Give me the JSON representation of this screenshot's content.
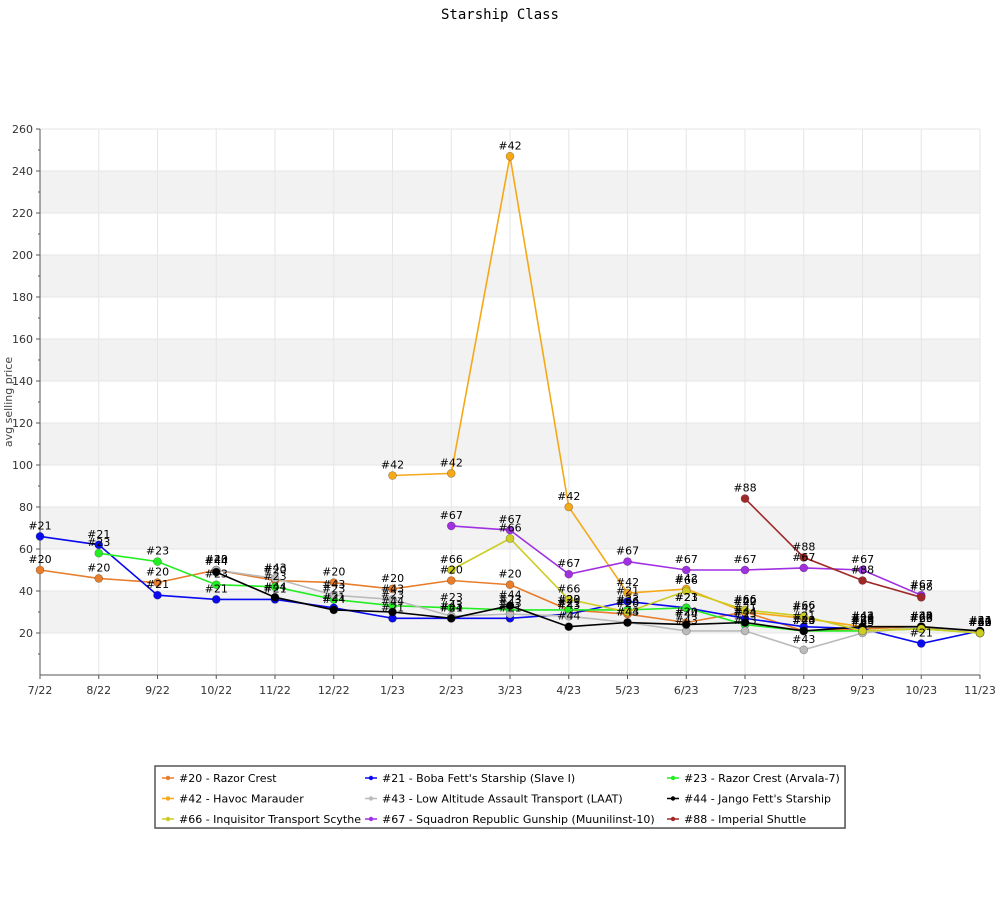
{
  "chart_data": {
    "type": "line",
    "title": "Starship Class",
    "xlabel": "",
    "ylabel": "avg selling price",
    "ylim": [
      0,
      260
    ],
    "yticks": [
      20,
      40,
      60,
      80,
      100,
      120,
      140,
      160,
      180,
      200,
      220,
      240,
      260
    ],
    "categories": [
      "7/22",
      "8/22",
      "9/22",
      "10/22",
      "11/22",
      "12/22",
      "1/23",
      "2/23",
      "3/23",
      "4/23",
      "5/23",
      "6/23",
      "7/23",
      "8/23",
      "9/23",
      "10/23",
      "11/23"
    ],
    "grid": true,
    "legend_position": "bottom",
    "series": [
      {
        "name": "#20 - Razor Crest",
        "label": "#20",
        "color": "#e87d2b",
        "values": [
          50,
          46,
          44,
          50,
          45,
          44,
          41,
          45,
          43,
          31,
          29,
          25,
          30,
          21,
          22,
          23,
          20
        ]
      },
      {
        "name": "#21 - Boba Fett's Starship (Slave I)",
        "label": "#21",
        "color": "#0a0af0",
        "values": [
          66,
          62,
          38,
          36,
          36,
          32,
          27,
          27,
          27,
          29,
          35,
          32,
          27,
          23,
          22,
          15,
          21
        ]
      },
      {
        "name": "#23 - Razor Crest (Arvala-7)",
        "label": "#23",
        "color": "#22ee22",
        "values": [
          null,
          58,
          54,
          43,
          42,
          36,
          33,
          32,
          31,
          31,
          31,
          32,
          24,
          21,
          21,
          22,
          20
        ]
      },
      {
        "name": "#42 - Havoc Marauder",
        "label": "#42",
        "color": "#f5a818",
        "values": [
          null,
          null,
          null,
          null,
          null,
          null,
          95,
          96,
          247,
          80,
          39,
          41,
          30,
          27,
          23,
          23,
          20
        ]
      },
      {
        "name": "#43 - Low Altitude Assault Transport (LAAT)",
        "label": "#43",
        "color": "#bbbbbb",
        "values": [
          null,
          null,
          null,
          50,
          46,
          38,
          36,
          28,
          29,
          28,
          25,
          21,
          21,
          12,
          20,
          23,
          20
        ]
      },
      {
        "name": "#44 - Jango Fett's Starship",
        "label": "#44",
        "color": "#000000",
        "values": [
          null,
          null,
          null,
          49,
          37,
          31,
          30,
          27,
          33,
          23,
          25,
          24,
          25,
          21,
          23,
          23,
          21
        ]
      },
      {
        "name": "#66 - Inquisitor Transport Scythe",
        "label": "#66",
        "color": "#cccc22",
        "values": [
          null,
          null,
          null,
          null,
          null,
          null,
          null,
          50,
          65,
          36,
          30,
          40,
          31,
          28,
          21,
          22,
          20
        ]
      },
      {
        "name": "#67 - Squadron Republic Gunship (Muunilinst-10)",
        "label": "#67",
        "color": "#a030e0",
        "values": [
          null,
          null,
          null,
          null,
          null,
          null,
          null,
          71,
          69,
          48,
          54,
          50,
          50,
          51,
          50,
          38,
          null
        ]
      },
      {
        "name": "#88 - Imperial Shuttle",
        "label": "#88",
        "color": "#a02828",
        "values": [
          null,
          null,
          null,
          null,
          null,
          null,
          null,
          null,
          null,
          null,
          null,
          null,
          84,
          56,
          45,
          37,
          null
        ]
      }
    ]
  }
}
